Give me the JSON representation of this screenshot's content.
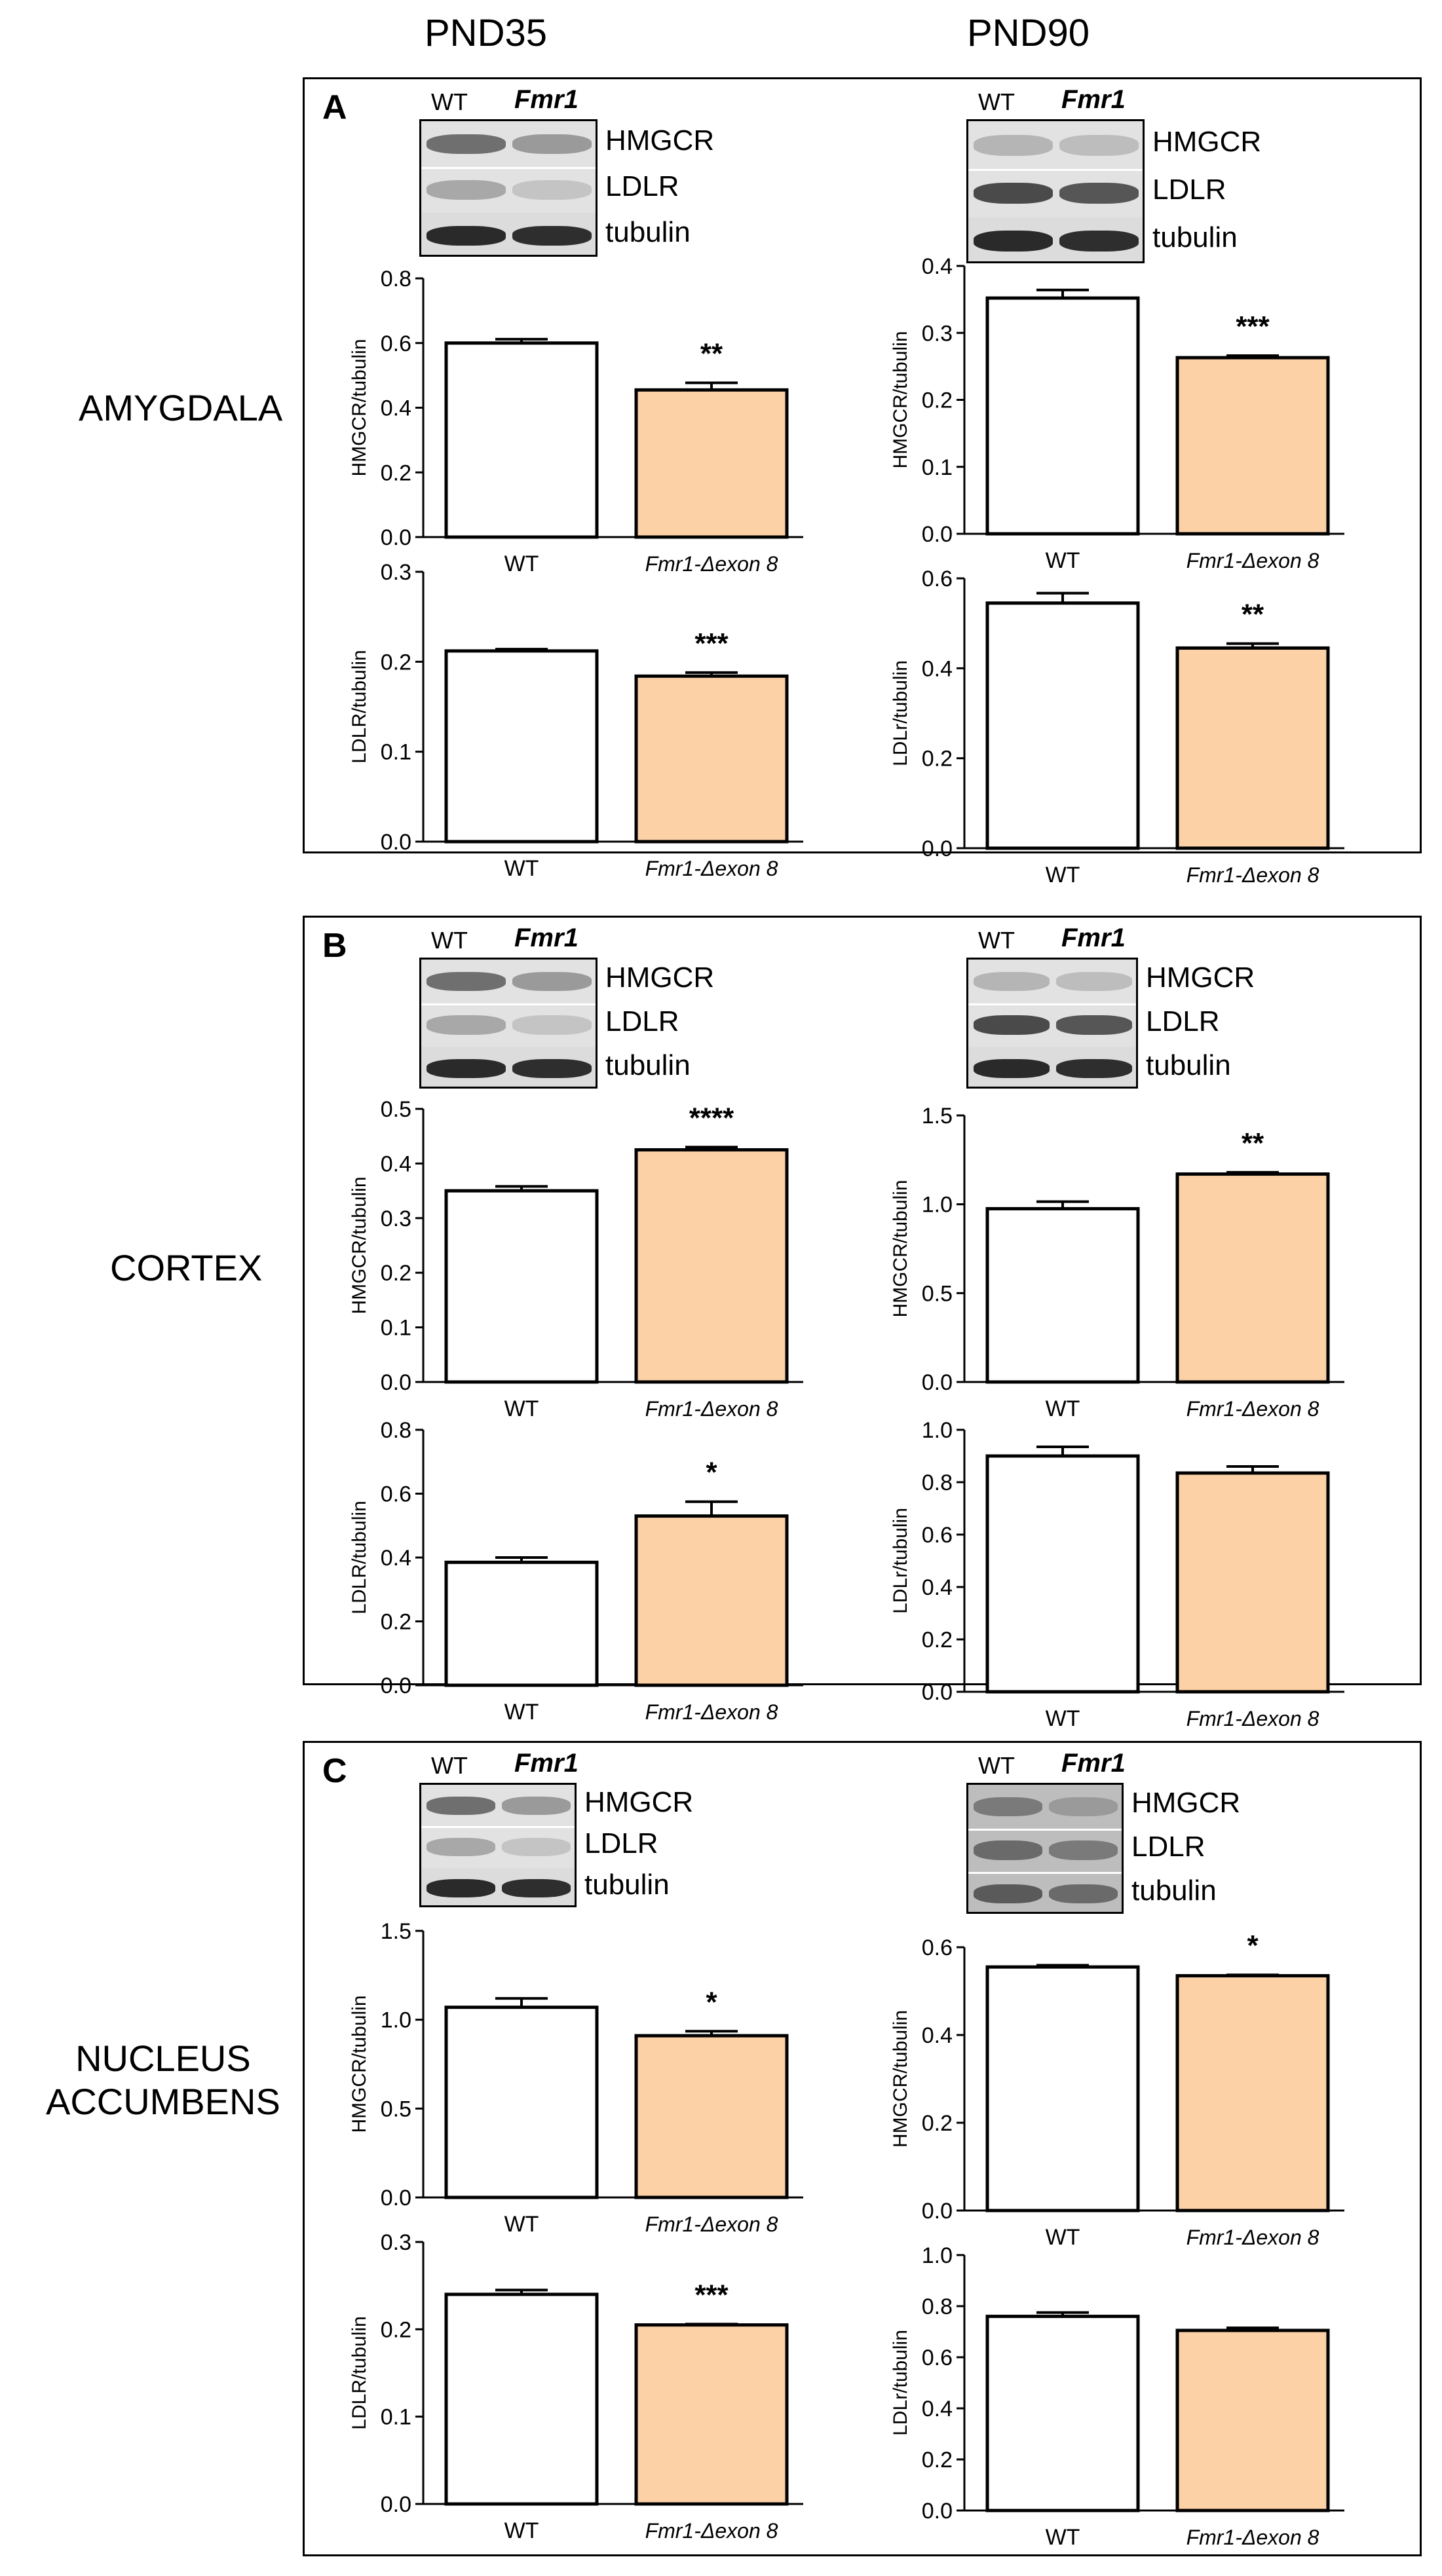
{
  "column_headers": [
    "PND35",
    "PND90"
  ],
  "regions": [
    {
      "name": "AMYGDALA",
      "lines": [
        "AMYGDALA"
      ]
    },
    {
      "name": "CORTEX",
      "lines": [
        "CORTEX"
      ]
    },
    {
      "name": "NUCLEUS ACCUMBENS",
      "lines": [
        "NUCLEUS",
        "ACCUMBENS"
      ]
    }
  ],
  "panels": [
    {
      "letter": "A",
      "blots": [
        {
          "col_labels": [
            "WT",
            "Fmr1"
          ],
          "band_labels": [
            "HMGCR",
            "LDLR",
            "tubulin"
          ]
        },
        {
          "col_labels": [
            "WT",
            "Fmr1"
          ],
          "band_labels": [
            "HMGCR",
            "LDLR",
            "tubulin"
          ]
        }
      ]
    },
    {
      "letter": "B",
      "blots": [
        {
          "col_labels": [
            "WT",
            "Fmr1"
          ],
          "band_labels": [
            "HMGCR",
            "LDLR",
            "tubulin"
          ]
        },
        {
          "col_labels": [
            "WT",
            "Fmr1"
          ],
          "band_labels": [
            "HMGCR",
            "LDLR",
            "tubulin"
          ]
        }
      ]
    },
    {
      "letter": "C",
      "blots": [
        {
          "col_labels": [
            "WT",
            "Fmr1"
          ],
          "band_labels": [
            "HMGCR",
            "LDLR",
            "tubulin"
          ]
        },
        {
          "col_labels": [
            "WT",
            "Fmr1"
          ],
          "band_labels": [
            "HMGCR",
            "LDLR",
            "tubulin"
          ]
        }
      ]
    }
  ],
  "colors": {
    "wt_fill": "#ffffff",
    "ko_fill": "#fcd1a6",
    "stroke": "#000000"
  },
  "chart_data": [
    {
      "id": "A-PND35-HMGCR",
      "type": "bar",
      "categories": [
        "WT",
        "Fmr1-Δexon 8"
      ],
      "values": [
        0.6,
        0.455
      ],
      "errors": [
        0.012,
        0.022
      ],
      "ylabel": "HMGCR/tubulin",
      "ylim": [
        0,
        0.8
      ],
      "ticks": [
        "0.0",
        "0.2",
        "0.4",
        "0.6",
        "0.8"
      ],
      "significance": "**"
    },
    {
      "id": "A-PND35-LDLR",
      "type": "bar",
      "categories": [
        "WT",
        "Fmr1-Δexon 8"
      ],
      "values": [
        0.212,
        0.184
      ],
      "errors": [
        0.002,
        0.004
      ],
      "ylabel": "LDLR/tubulin",
      "ylim": [
        0,
        0.3
      ],
      "ticks": [
        "0.0",
        "0.1",
        "0.2",
        "0.3"
      ],
      "significance": "***"
    },
    {
      "id": "A-PND90-HMGCR",
      "type": "bar",
      "categories": [
        "WT",
        "Fmr1-Δexon 8"
      ],
      "values": [
        0.352,
        0.263
      ],
      "errors": [
        0.012,
        0.003
      ],
      "ylabel": "HMGCR/tubulin",
      "ylim": [
        0,
        0.4
      ],
      "ticks": [
        "0.0",
        "0.1",
        "0.2",
        "0.3",
        "0.4"
      ],
      "significance": "***"
    },
    {
      "id": "A-PND90-LDLR",
      "type": "bar",
      "categories": [
        "WT",
        "Fmr1-Δexon 8"
      ],
      "values": [
        0.545,
        0.445
      ],
      "errors": [
        0.022,
        0.01
      ],
      "ylabel": "LDLr/tubulin",
      "ylim": [
        0,
        0.6
      ],
      "ticks": [
        "0.0",
        "0.2",
        "0.4",
        "0.6"
      ],
      "significance": "**"
    },
    {
      "id": "B-PND35-HMGCR",
      "type": "bar",
      "categories": [
        "WT",
        "Fmr1-Δexon 8"
      ],
      "values": [
        0.35,
        0.425
      ],
      "errors": [
        0.008,
        0.005
      ],
      "ylabel": "HMGCR/tubulin",
      "ylim": [
        0,
        0.5
      ],
      "ticks": [
        "0.0",
        "0.1",
        "0.2",
        "0.3",
        "0.4",
        "0.5"
      ],
      "significance": "****"
    },
    {
      "id": "B-PND35-LDLR",
      "type": "bar",
      "categories": [
        "WT",
        "Fmr1-Δexon 8"
      ],
      "values": [
        0.385,
        0.53
      ],
      "errors": [
        0.015,
        0.045
      ],
      "ylabel": "LDLR/tubulin",
      "ylim": [
        0,
        0.8
      ],
      "ticks": [
        "0.0",
        "0.2",
        "0.4",
        "0.6",
        "0.8"
      ],
      "significance": "*"
    },
    {
      "id": "B-PND90-HMGCR",
      "type": "bar",
      "categories": [
        "WT",
        "Fmr1-Δexon 8"
      ],
      "values": [
        0.975,
        1.17
      ],
      "errors": [
        0.04,
        0.01
      ],
      "ylabel": "HMGCR/tubulin",
      "ylim": [
        0,
        1.5
      ],
      "ticks": [
        "0.0",
        "0.5",
        "1.0",
        "1.5"
      ],
      "significance": "**"
    },
    {
      "id": "B-PND90-LDLR",
      "type": "bar",
      "categories": [
        "WT",
        "Fmr1-Δexon 8"
      ],
      "values": [
        0.9,
        0.835
      ],
      "errors": [
        0.035,
        0.025
      ],
      "ylabel": "LDLr/tubulin",
      "ylim": [
        0,
        1.0
      ],
      "ticks": [
        "0.0",
        "0.2",
        "0.4",
        "0.6",
        "0.8",
        "1.0"
      ],
      "significance": ""
    },
    {
      "id": "C-PND35-HMGCR",
      "type": "bar",
      "categories": [
        "WT",
        "Fmr1-Δexon 8"
      ],
      "values": [
        1.07,
        0.91
      ],
      "errors": [
        0.05,
        0.025
      ],
      "ylabel": "HMGCR/tubulin",
      "ylim": [
        0,
        1.5
      ],
      "ticks": [
        "0.0",
        "0.5",
        "1.0",
        "1.5"
      ],
      "significance": "*"
    },
    {
      "id": "C-PND35-LDLR",
      "type": "bar",
      "categories": [
        "WT",
        "Fmr1-Δexon 8"
      ],
      "values": [
        0.24,
        0.205
      ],
      "errors": [
        0.005,
        0.001
      ],
      "ylabel": "LDLR/tubulin",
      "ylim": [
        0,
        0.3
      ],
      "ticks": [
        "0.0",
        "0.1",
        "0.2",
        "0.3"
      ],
      "significance": "***"
    },
    {
      "id": "C-PND90-HMGCR",
      "type": "bar",
      "categories": [
        "WT",
        "Fmr1-Δexon 8"
      ],
      "values": [
        0.555,
        0.535
      ],
      "errors": [
        0.004,
        0.002
      ],
      "ylabel": "HMGCR/tubulin",
      "ylim": [
        0,
        0.6
      ],
      "ticks": [
        "0.0",
        "0.2",
        "0.4",
        "0.6"
      ],
      "significance": "*"
    },
    {
      "id": "C-PND90-LDLR",
      "type": "bar",
      "categories": [
        "WT",
        "Fmr1-Δexon 8"
      ],
      "values": [
        0.76,
        0.705
      ],
      "errors": [
        0.015,
        0.01
      ],
      "ylabel": "LDLr/tubulin",
      "ylim": [
        0,
        1.0
      ],
      "ticks": [
        "0.0",
        "0.2",
        "0.4",
        "0.6",
        "0.8",
        "1.0"
      ],
      "significance": ""
    }
  ]
}
